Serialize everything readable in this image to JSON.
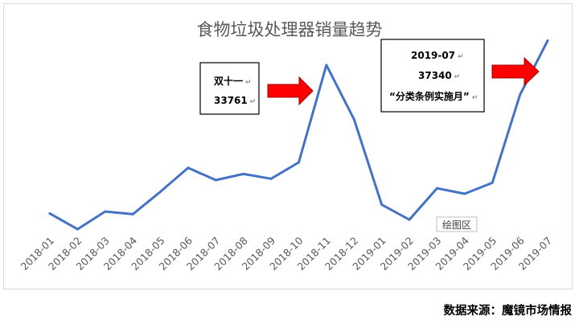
{
  "chart_data": {
    "type": "line",
    "title": "食物垃圾处理器销量趋势",
    "categories": [
      "2018-01",
      "2018-02",
      "2018-03",
      "2018-04",
      "2018-05",
      "2018-06",
      "2018-07",
      "2018-08",
      "2018-09",
      "2018-10",
      "2018-11",
      "2018-12",
      "2019-01",
      "2019-02",
      "2019-03",
      "2019-04",
      "2019-05",
      "2019-06",
      "2019-07"
    ],
    "series": [
      {
        "values": [
          12000,
          9700,
          12300,
          11900,
          15200,
          18700,
          16900,
          17800,
          17100,
          19500,
          33761,
          25800,
          13300,
          11100,
          15700,
          14900,
          16500,
          29400,
          37340
        ],
        "color": "#4472C4"
      }
    ],
    "ylim": [
      5000,
      40000
    ],
    "grid": false,
    "annotations": [
      {
        "lines": [
          "双十一",
          "33761"
        ],
        "x": "2018-11",
        "y": 33761
      },
      {
        "lines": [
          "2019-07",
          "37340",
          "“分类条例实施月”"
        ],
        "x": "2019-07",
        "y": 37340
      }
    ],
    "plot_area_label": "绘图区"
  },
  "source": "数据来源：魔镜市场情报",
  "arrow_color": "#FF0000",
  "edit_mark": "↵"
}
